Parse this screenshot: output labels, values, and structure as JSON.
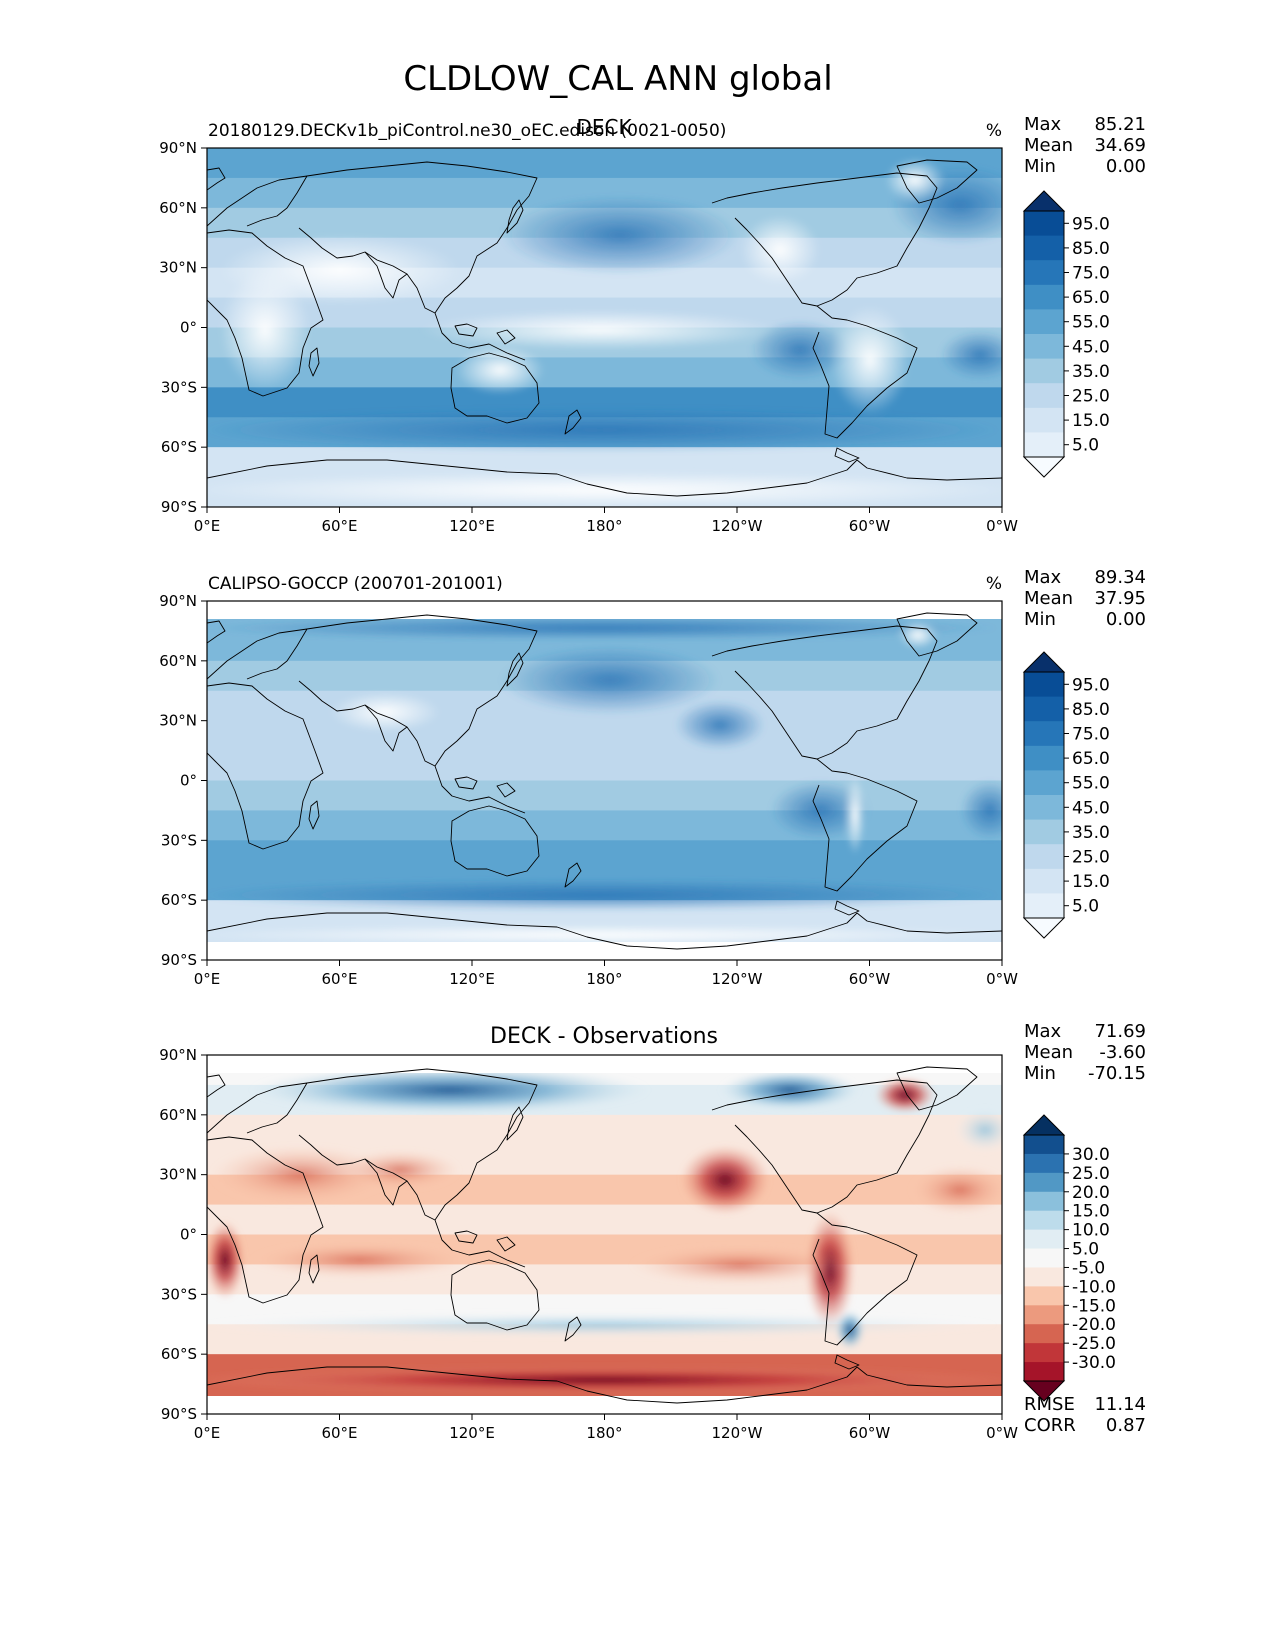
{
  "figure_title": "CLDLOW_CAL ANN global",
  "x_ticks": [
    "0°E",
    "60°E",
    "120°E",
    "180°",
    "120°W",
    "60°W",
    "0°W"
  ],
  "y_ticks": [
    "90°N",
    "60°N",
    "30°N",
    "0°",
    "30°S",
    "60°S",
    "90°S"
  ],
  "colors": {
    "blues": [
      "#f7fbff",
      "#e4eff9",
      "#d3e4f3",
      "#bfd8ed",
      "#a1cbe2",
      "#7db8da",
      "#5ca4d0",
      "#3f8fc5",
      "#2676b8",
      "#1460a8",
      "#084d96",
      "#08306b"
    ],
    "diverging": [
      "#67001f",
      "#a51429",
      "#c13639",
      "#d66551",
      "#ec9a7e",
      "#f9c6ac",
      "#f9e8df",
      "#f7f7f7",
      "#e1edf3",
      "#bddceb",
      "#8bc0dc",
      "#5198c5",
      "#2b72b0",
      "#124f8e",
      "#053061"
    ],
    "land_outline": "#000000"
  },
  "panels": [
    {
      "title_left": "20180129.DECKv1b_piControl.ne30_oEC.edison (0021-0050)",
      "title_center": "DECK",
      "units": "%",
      "stats": [
        {
          "label": "Max",
          "value": "85.21"
        },
        {
          "label": "Mean",
          "value": "34.69"
        },
        {
          "label": "Min",
          "value": "0.00"
        }
      ],
      "colorbar_labels": [
        "95.0",
        "85.0",
        "75.0",
        "65.0",
        "55.0",
        "45.0",
        "35.0",
        "25.0",
        "15.0",
        "5.0"
      ],
      "footer": []
    },
    {
      "title_left": "CALIPSO-GOCCP (200701-201001)",
      "title_center": "",
      "units": "%",
      "stats": [
        {
          "label": "Max",
          "value": "89.34"
        },
        {
          "label": "Mean",
          "value": "37.95"
        },
        {
          "label": "Min",
          "value": "0.00"
        }
      ],
      "colorbar_labels": [
        "95.0",
        "85.0",
        "75.0",
        "65.0",
        "55.0",
        "45.0",
        "35.0",
        "25.0",
        "15.0",
        "5.0"
      ],
      "footer": []
    },
    {
      "title_left": "",
      "title_center": "DECK - Observations",
      "units": "",
      "stats": [
        {
          "label": "Max",
          "value": "71.69"
        },
        {
          "label": "Mean",
          "value": "-3.60"
        },
        {
          "label": "Min",
          "value": "-70.15"
        }
      ],
      "colorbar_labels": [
        "30.0",
        "25.0",
        "20.0",
        "15.0",
        "10.0",
        "5.0",
        "-5.0",
        "-10.0",
        "-15.0",
        "-20.0",
        "-25.0",
        "-30.0"
      ],
      "footer": [
        {
          "label": "RMSE",
          "value": "11.14"
        },
        {
          "label": "CORR",
          "value": "0.87"
        }
      ]
    }
  ],
  "chart_data": [
    {
      "type": "heatmap",
      "title": "DECK",
      "subtitle": "20180129.DECKv1b_piControl.ne30_oEC.edison (0021-0050)",
      "variable": "CLDLOW_CAL",
      "season": "ANN",
      "region": "global",
      "units": "%",
      "xlim": [
        0,
        360
      ],
      "ylim": [
        -90,
        90
      ],
      "x_tick_values": [
        0,
        60,
        120,
        180,
        240,
        300,
        360
      ],
      "y_tick_values": [
        90,
        60,
        30,
        0,
        -30,
        -60,
        -90
      ],
      "levels": [
        0,
        5,
        15,
        25,
        35,
        45,
        55,
        65,
        75,
        85,
        95,
        100
      ],
      "lat_bands": [
        75,
        60,
        45,
        30,
        15,
        0,
        -15,
        -30,
        -45,
        -60,
        -75
      ],
      "zonal_mean": [
        55,
        52,
        38,
        28,
        22,
        25,
        35,
        48,
        68,
        62,
        15
      ],
      "stats": {
        "max": 85.21,
        "mean": 34.69,
        "min": 0.0
      }
    },
    {
      "type": "heatmap",
      "title": "CALIPSO-GOCCP (200701-201001)",
      "variable": "CLDLOW_CAL",
      "season": "ANN",
      "region": "global",
      "units": "%",
      "xlim": [
        0,
        360
      ],
      "ylim": [
        -90,
        90
      ],
      "x_tick_values": [
        0,
        60,
        120,
        180,
        240,
        300,
        360
      ],
      "y_tick_values": [
        90,
        60,
        30,
        0,
        -30,
        -60,
        -90
      ],
      "levels": [
        0,
        5,
        15,
        25,
        35,
        45,
        55,
        65,
        75,
        85,
        95,
        100
      ],
      "lat_bands": [
        75,
        60,
        45,
        30,
        15,
        0,
        -15,
        -30,
        -45,
        -60,
        -75
      ],
      "zonal_mean": [
        50,
        45,
        35,
        30,
        25,
        30,
        38,
        48,
        60,
        62,
        20
      ],
      "stats": {
        "max": 89.34,
        "mean": 37.95,
        "min": 0.0
      }
    },
    {
      "type": "heatmap",
      "title": "DECK - Observations",
      "variable": "CLDLOW_CAL",
      "season": "ANN",
      "region": "global",
      "units": "%",
      "xlim": [
        0,
        360
      ],
      "ylim": [
        -90,
        90
      ],
      "x_tick_values": [
        0,
        60,
        120,
        180,
        240,
        300,
        360
      ],
      "y_tick_values": [
        90,
        60,
        30,
        0,
        -30,
        -60,
        -90
      ],
      "levels": [
        -100,
        -30,
        -25,
        -20,
        -15,
        -10,
        -5,
        5,
        10,
        15,
        20,
        25,
        30,
        100
      ],
      "lat_bands": [
        75,
        60,
        45,
        30,
        15,
        0,
        -15,
        -30,
        -45,
        -60,
        -75
      ],
      "zonal_mean": [
        8,
        10,
        3,
        -5,
        -6,
        -3,
        -6,
        2,
        6,
        -3,
        -18
      ],
      "stats": {
        "max": 71.69,
        "mean": -3.6,
        "min": -70.15,
        "rmse": 11.14,
        "corr": 0.87
      }
    }
  ]
}
